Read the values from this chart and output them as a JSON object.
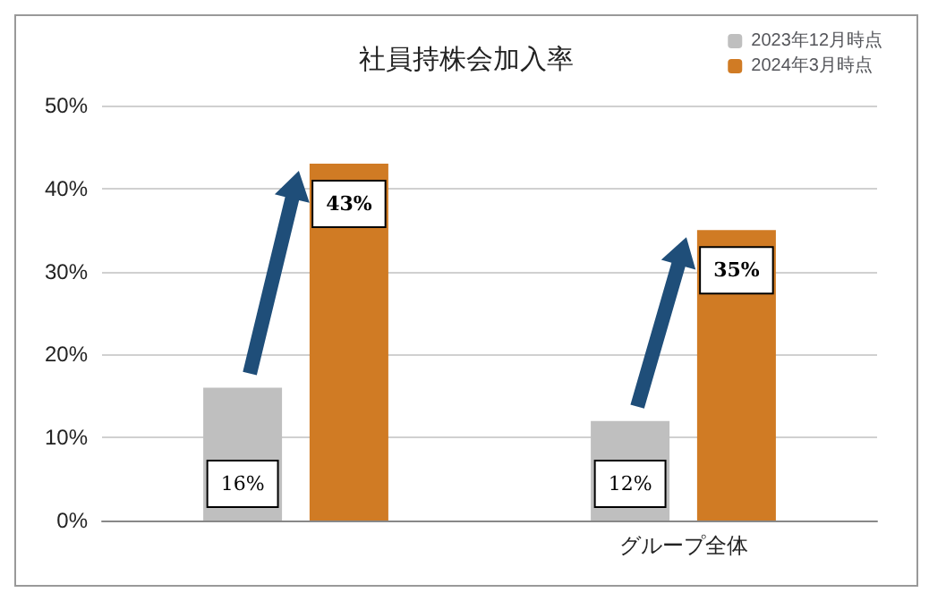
{
  "chart_data": {
    "type": "bar",
    "title": "社員持株会加入率",
    "categories": [
      null,
      "グループ全体"
    ],
    "series": [
      {
        "name": "2023年12月時点",
        "color": "#bfbfbf",
        "values": [
          16,
          12
        ],
        "value_labels": [
          "16%",
          "12%"
        ]
      },
      {
        "name": "2024年3月時点",
        "color": "#d07b24",
        "values": [
          43,
          35
        ],
        "value_labels": [
          "43%",
          "35%"
        ]
      }
    ],
    "ylim": [
      0,
      50
    ],
    "yticks": [
      {
        "value": 0,
        "label": "0%"
      },
      {
        "value": 10,
        "label": "10%"
      },
      {
        "value": 20,
        "label": "20%"
      },
      {
        "value": 30,
        "label": "30%"
      },
      {
        "value": 40,
        "label": "40%"
      },
      {
        "value": 50,
        "label": "50%"
      }
    ],
    "grid": "y",
    "legend": "top right"
  }
}
